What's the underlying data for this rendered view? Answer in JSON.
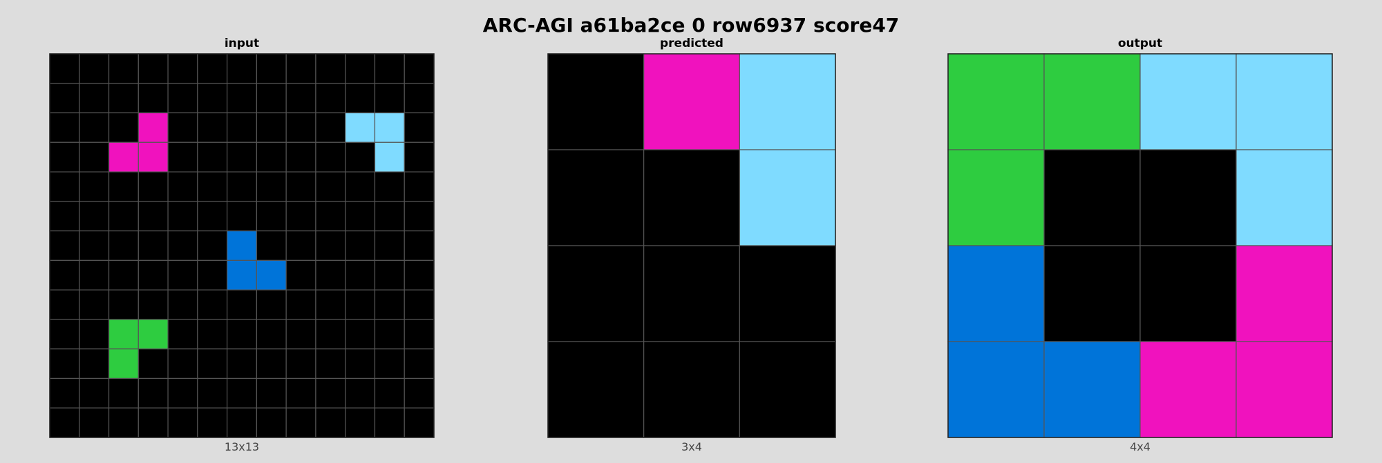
{
  "title": "ARC-AGI a61ba2ce 0 row6937 score47",
  "palette": {
    "0": "#000000",
    "1": "#0074d9",
    "3": "#2ecc40",
    "6": "#f012be",
    "8": "#7fdbff"
  },
  "grid_line_color": "#555555",
  "panels": [
    {
      "label": "input",
      "dims": "13x13",
      "grid": [
        [
          0,
          0,
          0,
          0,
          0,
          0,
          0,
          0,
          0,
          0,
          0,
          0,
          0
        ],
        [
          0,
          0,
          0,
          0,
          0,
          0,
          0,
          0,
          0,
          0,
          0,
          0,
          0
        ],
        [
          0,
          0,
          0,
          6,
          0,
          0,
          0,
          0,
          0,
          0,
          8,
          8,
          0
        ],
        [
          0,
          0,
          6,
          6,
          0,
          0,
          0,
          0,
          0,
          0,
          0,
          8,
          0
        ],
        [
          0,
          0,
          0,
          0,
          0,
          0,
          0,
          0,
          0,
          0,
          0,
          0,
          0
        ],
        [
          0,
          0,
          0,
          0,
          0,
          0,
          0,
          0,
          0,
          0,
          0,
          0,
          0
        ],
        [
          0,
          0,
          0,
          0,
          0,
          0,
          1,
          0,
          0,
          0,
          0,
          0,
          0
        ],
        [
          0,
          0,
          0,
          0,
          0,
          0,
          1,
          1,
          0,
          0,
          0,
          0,
          0
        ],
        [
          0,
          0,
          0,
          0,
          0,
          0,
          0,
          0,
          0,
          0,
          0,
          0,
          0
        ],
        [
          0,
          0,
          3,
          3,
          0,
          0,
          0,
          0,
          0,
          0,
          0,
          0,
          0
        ],
        [
          0,
          0,
          3,
          0,
          0,
          0,
          0,
          0,
          0,
          0,
          0,
          0,
          0
        ],
        [
          0,
          0,
          0,
          0,
          0,
          0,
          0,
          0,
          0,
          0,
          0,
          0,
          0
        ],
        [
          0,
          0,
          0,
          0,
          0,
          0,
          0,
          0,
          0,
          0,
          0,
          0,
          0
        ]
      ]
    },
    {
      "label": "predicted",
      "dims": "3x4",
      "grid": [
        [
          0,
          6,
          8
        ],
        [
          0,
          0,
          8
        ],
        [
          0,
          0,
          0
        ],
        [
          0,
          0,
          0
        ]
      ]
    },
    {
      "label": "output",
      "dims": "4x4",
      "grid": [
        [
          3,
          3,
          8,
          8
        ],
        [
          3,
          0,
          0,
          8
        ],
        [
          1,
          0,
          0,
          6
        ],
        [
          1,
          1,
          6,
          6
        ]
      ]
    }
  ]
}
